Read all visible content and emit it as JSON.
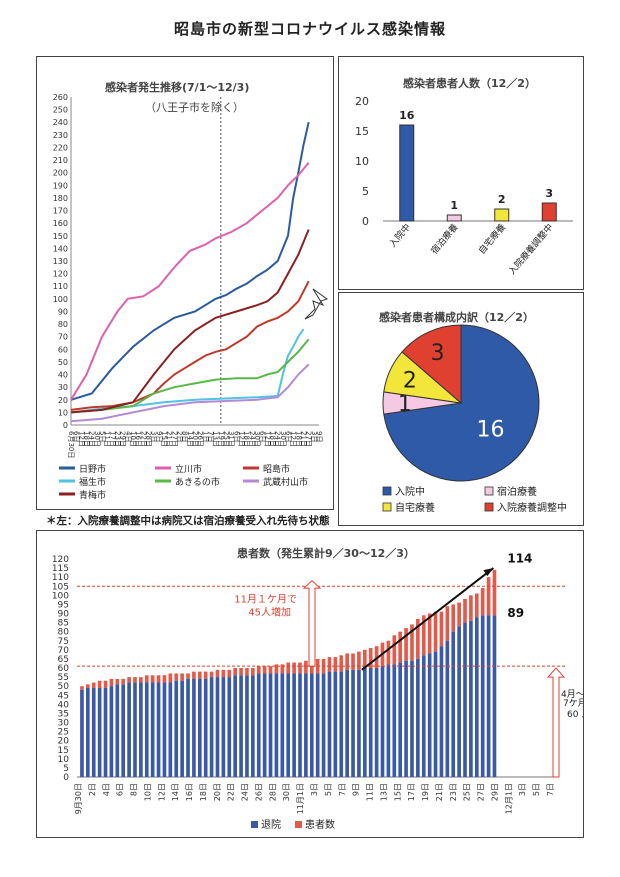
{
  "page": {
    "title": "昭島市の新型コロナウイルス感染情報",
    "note": "＊左：入院療養調整中は病院又は宿泊療養受入れ先待ち状態"
  },
  "colors": {
    "hino": "#2a5b9e",
    "tachikawa": "#e05fae",
    "akishima": "#c0392b",
    "fussa": "#4fc3e0",
    "akiruno": "#58b848",
    "musashimurayama": "#b48ad6",
    "ome": "#8b2020",
    "hospital": "#2e5aa8",
    "hotel": "#f5c8e4",
    "home": "#f2e63a",
    "adjusting": "#e04030",
    "discharged": "#3a5aa8",
    "patients": "#e45a4a",
    "annotation": "#e04030"
  },
  "chart_data": [
    {
      "id": "trend",
      "type": "line",
      "title": "感染者発生推移(7/1～12/3)",
      "subtitle": "（八王子市を除く）",
      "x_ticks": [
        "6月30日",
        "6日",
        "12日",
        "18日",
        "24日",
        "30日",
        "5日",
        "11日",
        "17日",
        "23日",
        "29日",
        "4日",
        "10日",
        "16日",
        "22日",
        "28日",
        "3日",
        "9日",
        "15日",
        "21日",
        "27日",
        "2日",
        "8日",
        "14日",
        "20日",
        "26日",
        "1日",
        "7日",
        "13日",
        "19日",
        "25日",
        "31日",
        "6日",
        "12日",
        "18日",
        "24日",
        "30日",
        "6日",
        "12日",
        "18日",
        "24日",
        "30日",
        "6日",
        "12日",
        "18日",
        "21日",
        "27日",
        "3日",
        "9日"
      ],
      "ylim": [
        0,
        260
      ],
      "y_ticks": [
        0,
        10,
        20,
        30,
        40,
        50,
        60,
        70,
        80,
        90,
        100,
        110,
        120,
        130,
        140,
        150,
        160,
        170,
        180,
        190,
        200,
        210,
        220,
        230,
        240,
        250,
        260
      ],
      "series": [
        {
          "name": "日野市",
          "color_key": "hino",
          "points": [
            [
              0,
              20
            ],
            [
              4,
              25
            ],
            [
              8,
              45
            ],
            [
              12,
              62
            ],
            [
              16,
              75
            ],
            [
              20,
              85
            ],
            [
              24,
              90
            ],
            [
              28,
              100
            ],
            [
              30,
              103
            ],
            [
              32,
              108
            ],
            [
              34,
              112
            ],
            [
              36,
              118
            ],
            [
              38,
              123
            ],
            [
              40,
              130
            ],
            [
              42,
              150
            ],
            [
              43,
              180
            ],
            [
              44,
              200
            ],
            [
              45,
              222
            ],
            [
              46,
              240
            ]
          ]
        },
        {
          "name": "立川市",
          "color_key": "tachikawa",
          "points": [
            [
              0,
              20
            ],
            [
              3,
              40
            ],
            [
              6,
              70
            ],
            [
              9,
              90
            ],
            [
              11,
              100
            ],
            [
              14,
              102
            ],
            [
              17,
              110
            ],
            [
              20,
              125
            ],
            [
              23,
              138
            ],
            [
              26,
              143
            ],
            [
              28,
              148
            ],
            [
              31,
              153
            ],
            [
              34,
              160
            ],
            [
              37,
              170
            ],
            [
              40,
              180
            ],
            [
              42,
              190
            ],
            [
              44,
              198
            ],
            [
              46,
              208
            ]
          ]
        },
        {
          "name": "昭島市",
          "color_key": "akishima",
          "points": [
            [
              0,
              12
            ],
            [
              4,
              14
            ],
            [
              8,
              15
            ],
            [
              12,
              18
            ],
            [
              16,
              25
            ],
            [
              18,
              33
            ],
            [
              20,
              40
            ],
            [
              22,
              45
            ],
            [
              24,
              50
            ],
            [
              26,
              55
            ],
            [
              28,
              58
            ],
            [
              30,
              60
            ],
            [
              32,
              65
            ],
            [
              34,
              70
            ],
            [
              36,
              78
            ],
            [
              38,
              82
            ],
            [
              40,
              85
            ],
            [
              42,
              90
            ],
            [
              44,
              98
            ],
            [
              46,
              114
            ]
          ]
        },
        {
          "name": "福生市",
          "color_key": "fussa",
          "points": [
            [
              0,
              10
            ],
            [
              6,
              13
            ],
            [
              12,
              15
            ],
            [
              18,
              18
            ],
            [
              24,
              20
            ],
            [
              30,
              21
            ],
            [
              36,
              22
            ],
            [
              40,
              23
            ],
            [
              41,
              40
            ],
            [
              42,
              55
            ],
            [
              43,
              62
            ],
            [
              44,
              70
            ],
            [
              45,
              76
            ]
          ]
        },
        {
          "name": "あきるの市",
          "color_key": "akiruno",
          "points": [
            [
              0,
              10
            ],
            [
              6,
              12
            ],
            [
              12,
              15
            ],
            [
              16,
              25
            ],
            [
              20,
              30
            ],
            [
              24,
              33
            ],
            [
              28,
              36
            ],
            [
              32,
              37
            ],
            [
              36,
              37
            ],
            [
              38,
              40
            ],
            [
              40,
              42
            ],
            [
              42,
              50
            ],
            [
              44,
              58
            ],
            [
              46,
              68
            ]
          ]
        },
        {
          "name": "武蔵村山市",
          "color_key": "musashimurayama",
          "points": [
            [
              0,
              3
            ],
            [
              6,
              5
            ],
            [
              12,
              10
            ],
            [
              18,
              15
            ],
            [
              24,
              18
            ],
            [
              30,
              19
            ],
            [
              36,
              20
            ],
            [
              40,
              22
            ],
            [
              42,
              30
            ],
            [
              44,
              40
            ],
            [
              46,
              48
            ]
          ]
        },
        {
          "name": "青梅市",
          "color_key": "ome",
          "points": [
            [
              0,
              10
            ],
            [
              6,
              12
            ],
            [
              12,
              18
            ],
            [
              16,
              40
            ],
            [
              20,
              60
            ],
            [
              24,
              75
            ],
            [
              28,
              85
            ],
            [
              32,
              90
            ],
            [
              36,
              95
            ],
            [
              38,
              98
            ],
            [
              40,
              105
            ],
            [
              42,
              120
            ],
            [
              44,
              135
            ],
            [
              46,
              155
            ]
          ]
        }
      ]
    },
    {
      "id": "count",
      "type": "bar",
      "title": "感染者患者人数（12／2）",
      "categories": [
        "入院中",
        "宿泊療養",
        "自宅療養",
        "入院療養調整中"
      ],
      "values": [
        16,
        1,
        2,
        3
      ],
      "color_keys": [
        "hospital",
        "hotel",
        "home",
        "adjusting"
      ],
      "value_labels": [
        "16",
        "1",
        "2",
        "3"
      ],
      "ylim": [
        0,
        20
      ],
      "y_ticks": [
        0,
        5,
        10,
        15,
        20
      ]
    },
    {
      "id": "pie",
      "type": "pie",
      "title": "感染者患者構成内訳（12／2）",
      "labels": [
        "入院中",
        "宿泊療養",
        "自宅療養",
        "入院療養調整中"
      ],
      "values": [
        16,
        1,
        2,
        3
      ],
      "slice_labels": [
        "16",
        "1",
        "2",
        "3"
      ],
      "color_keys": [
        "hospital",
        "hotel",
        "home",
        "adjusting"
      ]
    },
    {
      "id": "cumulative",
      "type": "bar",
      "title": "患者数（発生累計9／30～12／3）",
      "x_ticks": [
        "9月30日",
        "2日",
        "4日",
        "6日",
        "8日",
        "10日",
        "12日",
        "14日",
        "16日",
        "18日",
        "20日",
        "22日",
        "24日",
        "26日",
        "28日",
        "30日",
        "11月1日",
        "3日",
        "5日",
        "7日",
        "9日",
        "11日",
        "13日",
        "15日",
        "17日",
        "19日",
        "21日",
        "23日",
        "25日",
        "27日",
        "29日",
        "12月1日",
        "3日",
        "5日",
        "7日"
      ],
      "ylim": [
        0,
        120
      ],
      "y_ticks": [
        0,
        5,
        10,
        15,
        20,
        25,
        30,
        35,
        40,
        45,
        50,
        55,
        60,
        65,
        70,
        75,
        80,
        85,
        90,
        95,
        100,
        105,
        110,
        115,
        120
      ],
      "legend": [
        "退院",
        "患者数"
      ],
      "series": [
        {
          "name": "退院",
          "color_key": "discharged",
          "values": [
            48,
            49,
            49,
            49,
            49,
            50,
            51,
            51,
            52,
            52,
            52,
            52,
            52,
            52,
            52,
            52,
            53,
            53,
            54,
            54,
            54,
            54,
            55,
            55,
            55,
            55,
            56,
            56,
            56,
            56,
            57,
            57,
            57,
            57,
            57,
            57,
            57,
            57,
            57,
            57,
            57,
            57,
            58,
            58,
            58,
            59,
            59,
            59,
            60,
            60,
            60,
            61,
            62,
            62,
            63,
            64,
            64,
            65,
            67,
            68,
            69,
            72,
            75,
            80,
            83,
            85,
            86,
            88,
            89,
            89,
            89
          ]
        },
        {
          "name": "患者数",
          "color_key": "patients",
          "values": [
            50,
            51,
            52,
            53,
            53,
            54,
            54,
            54,
            55,
            55,
            55,
            56,
            56,
            56,
            56,
            57,
            57,
            57,
            57,
            58,
            58,
            58,
            58,
            59,
            59,
            59,
            60,
            60,
            60,
            60,
            61,
            61,
            61,
            62,
            62,
            63,
            63,
            63,
            64,
            64,
            65,
            65,
            66,
            66,
            67,
            68,
            68,
            69,
            70,
            71,
            72,
            74,
            75,
            78,
            80,
            82,
            84,
            87,
            89,
            90,
            91,
            91,
            94,
            95,
            96,
            98,
            100,
            101,
            104,
            110,
            114
          ]
        }
      ],
      "ref_lines": [
        105,
        61
      ],
      "end_labels": {
        "top": "114",
        "bottom": "89"
      },
      "annotations": {
        "increase_line1": "11月１ケ月で",
        "increase_line2": "45人増加",
        "period_line1": "4月～10月",
        "period_line2": "7ケ月で",
        "period_line3": "60 人"
      }
    }
  ]
}
